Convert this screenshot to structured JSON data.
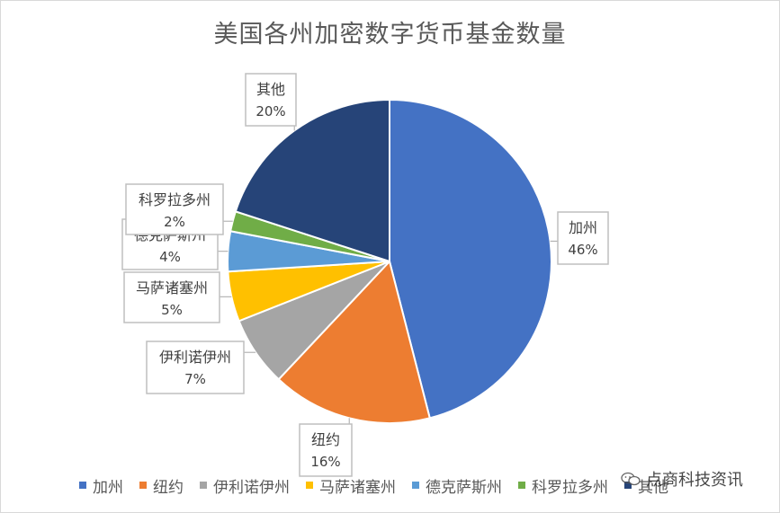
{
  "chart_data": {
    "type": "pie",
    "title": "美国各州加密数字货币基金数量",
    "categories": [
      "加州",
      "纽约",
      "伊利诺伊州",
      "马萨诸塞州",
      "德克萨斯州",
      "科罗拉多州",
      "其他"
    ],
    "values": [
      46,
      16,
      7,
      5,
      4,
      2,
      20
    ],
    "data_labels": [
      "46%",
      "16%",
      "7%",
      "5%",
      "4%",
      "2%",
      "20%"
    ],
    "colors": [
      "#4472c4",
      "#ed7d31",
      "#a5a5a5",
      "#ffc000",
      "#5b9bd5",
      "#70ad47",
      "#264478"
    ],
    "legend_position": "bottom"
  },
  "watermark": {
    "text": "点商科技资讯",
    "icon": "wechat-icon"
  }
}
